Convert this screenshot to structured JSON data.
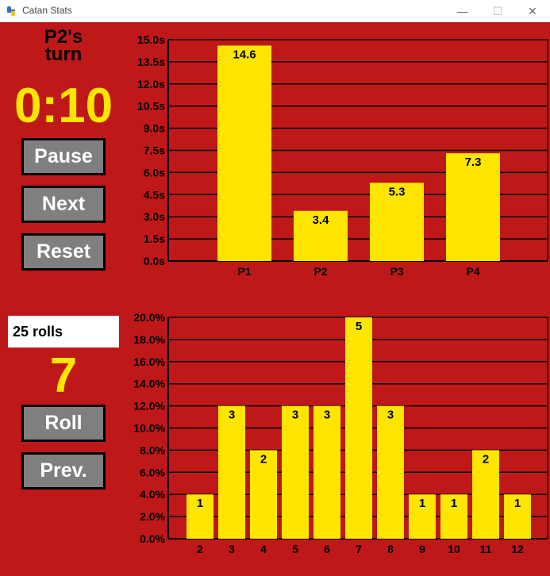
{
  "window": {
    "title": "Catan Stats",
    "minimize": "—",
    "maximize": "☐",
    "close": "✕"
  },
  "turn": {
    "line1": "P2's",
    "line2": "turn"
  },
  "timer": "0:10",
  "buttons": {
    "pause": "Pause",
    "next": "Next",
    "reset": "Reset",
    "roll": "Roll",
    "prev": "Prev."
  },
  "roll_count": "25 rolls",
  "last_roll": "7",
  "colors": {
    "background": "#bf1818",
    "bar": "#ffe600",
    "button": "#7f7f7f"
  },
  "chart_data": [
    {
      "type": "bar",
      "categories": [
        "P1",
        "P2",
        "P3",
        "P4"
      ],
      "values": [
        14.6,
        3.4,
        5.3,
        7.3
      ],
      "labels": [
        "14.6",
        "3.4",
        "5.3",
        "7.3"
      ],
      "yticks": [
        "0.0s",
        "1.5s",
        "3.0s",
        "4.5s",
        "6.0s",
        "7.5s",
        "9.0s",
        "10.5s",
        "12.0s",
        "13.5s",
        "15.0s"
      ],
      "ylim": [
        0,
        15
      ],
      "grid": true
    },
    {
      "type": "bar",
      "categories": [
        "2",
        "3",
        "4",
        "5",
        "6",
        "7",
        "8",
        "9",
        "10",
        "11",
        "12"
      ],
      "values": [
        1,
        3,
        2,
        3,
        3,
        5,
        3,
        1,
        1,
        2,
        1
      ],
      "labels": [
        "1",
        "3",
        "2",
        "3",
        "3",
        "5",
        "3",
        "1",
        "1",
        "2",
        "1"
      ],
      "yticks": [
        "0.0%",
        "2.0%",
        "4.0%",
        "6.0%",
        "8.0%",
        "10.0%",
        "12.0%",
        "14.0%",
        "16.0%",
        "18.0%",
        "20.0%"
      ],
      "ylim": [
        0,
        20
      ],
      "total": 25,
      "grid": true
    }
  ]
}
